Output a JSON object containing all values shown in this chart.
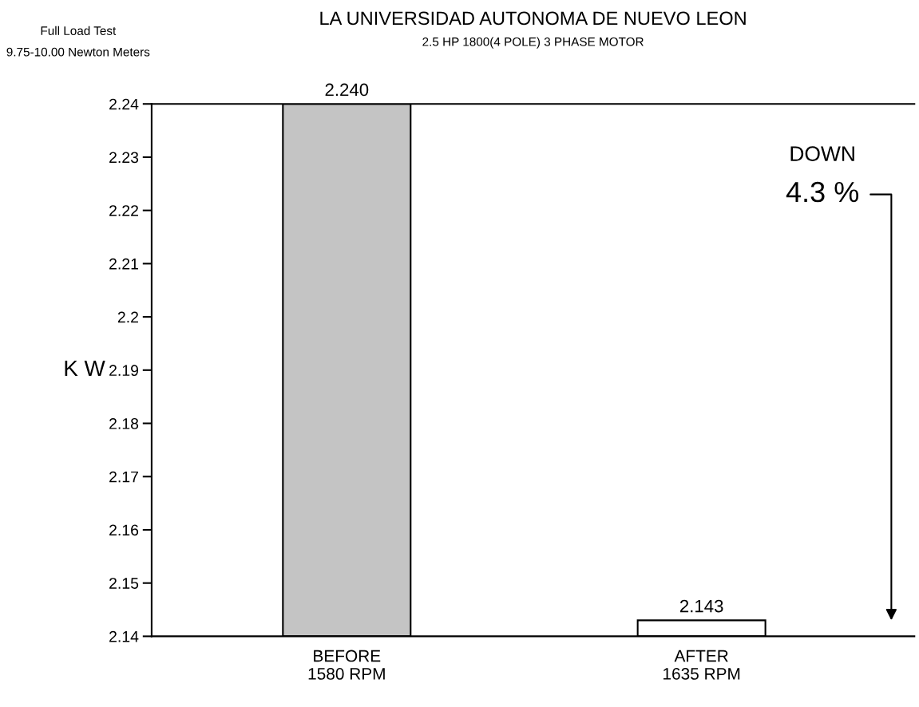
{
  "chart_data": {
    "type": "bar",
    "title": "LA UNIVERSIDAD AUTONOMA DE NUEVO LEON",
    "subtitle": "2.5 HP 1800(4 POLE) 3 PHASE MOTOR",
    "ylabel": "K W",
    "categories": [
      "BEFORE\n1580 RPM",
      "AFTER\n1635 RPM"
    ],
    "values": [
      2.24,
      2.143
    ],
    "colors": [
      "#c4c4c4",
      "#ffffff"
    ],
    "value_labels": [
      "2.240",
      "2.143"
    ],
    "ylim": [
      2.14,
      2.24
    ],
    "yticks": [
      2.14,
      2.15,
      2.16,
      2.17,
      2.18,
      2.19,
      2.2,
      2.21,
      2.22,
      2.23,
      2.24
    ],
    "grid": false,
    "legend": false,
    "annotations": [
      "Full Load Test",
      "9.75-10.00 Newton Meters",
      "DOWN",
      "4.3 %"
    ]
  }
}
